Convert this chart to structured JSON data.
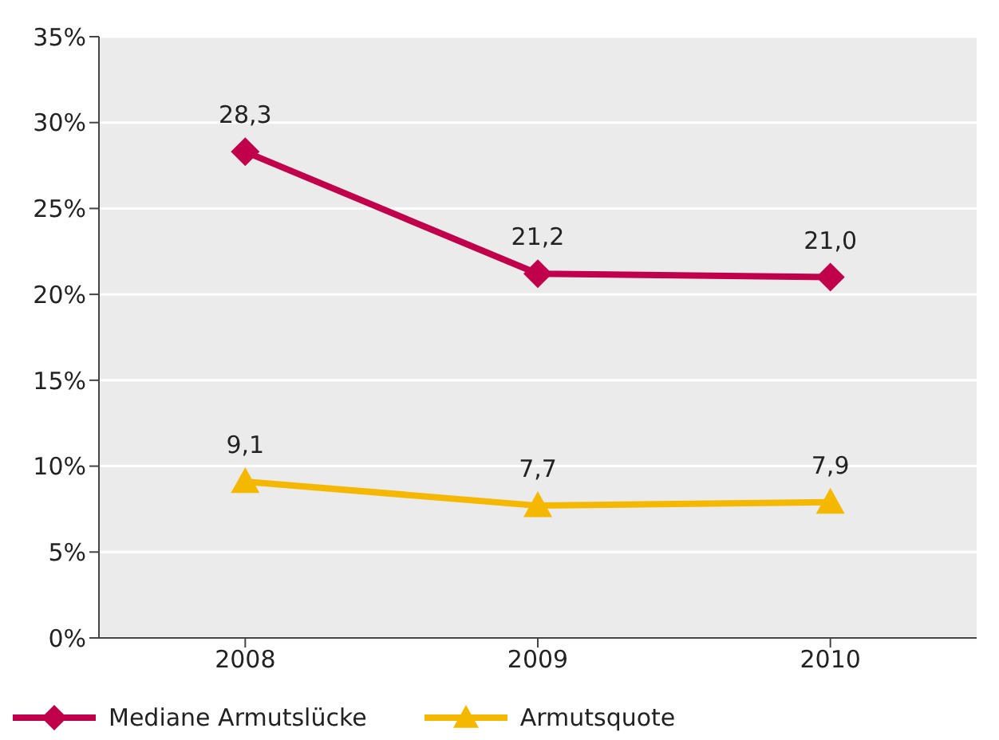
{
  "chart_data": {
    "type": "line",
    "categories": [
      "2008",
      "2009",
      "2010"
    ],
    "series": [
      {
        "name": "Mediane Armutslücke",
        "color": "#c0004a",
        "marker": "diamond",
        "values": [
          28.3,
          21.2,
          21.0
        ],
        "value_labels": [
          "28,3",
          "21,2",
          "21,0"
        ]
      },
      {
        "name": "Armutsquote",
        "color": "#f5b800",
        "marker": "triangle",
        "values": [
          9.1,
          7.7,
          7.9
        ],
        "value_labels": [
          "9,1",
          "7,7",
          "7,9"
        ]
      }
    ],
    "ylim": [
      0,
      35
    ],
    "yticks": [
      {
        "value": 0,
        "label": "0%"
      },
      {
        "value": 5,
        "label": "5%"
      },
      {
        "value": 10,
        "label": "10%"
      },
      {
        "value": 15,
        "label": "15%"
      },
      {
        "value": 20,
        "label": "20%"
      },
      {
        "value": 25,
        "label": "25%"
      },
      {
        "value": 30,
        "label": "30%"
      },
      {
        "value": 35,
        "label": "35%"
      }
    ],
    "grid": "y",
    "legend": "bottom left"
  }
}
